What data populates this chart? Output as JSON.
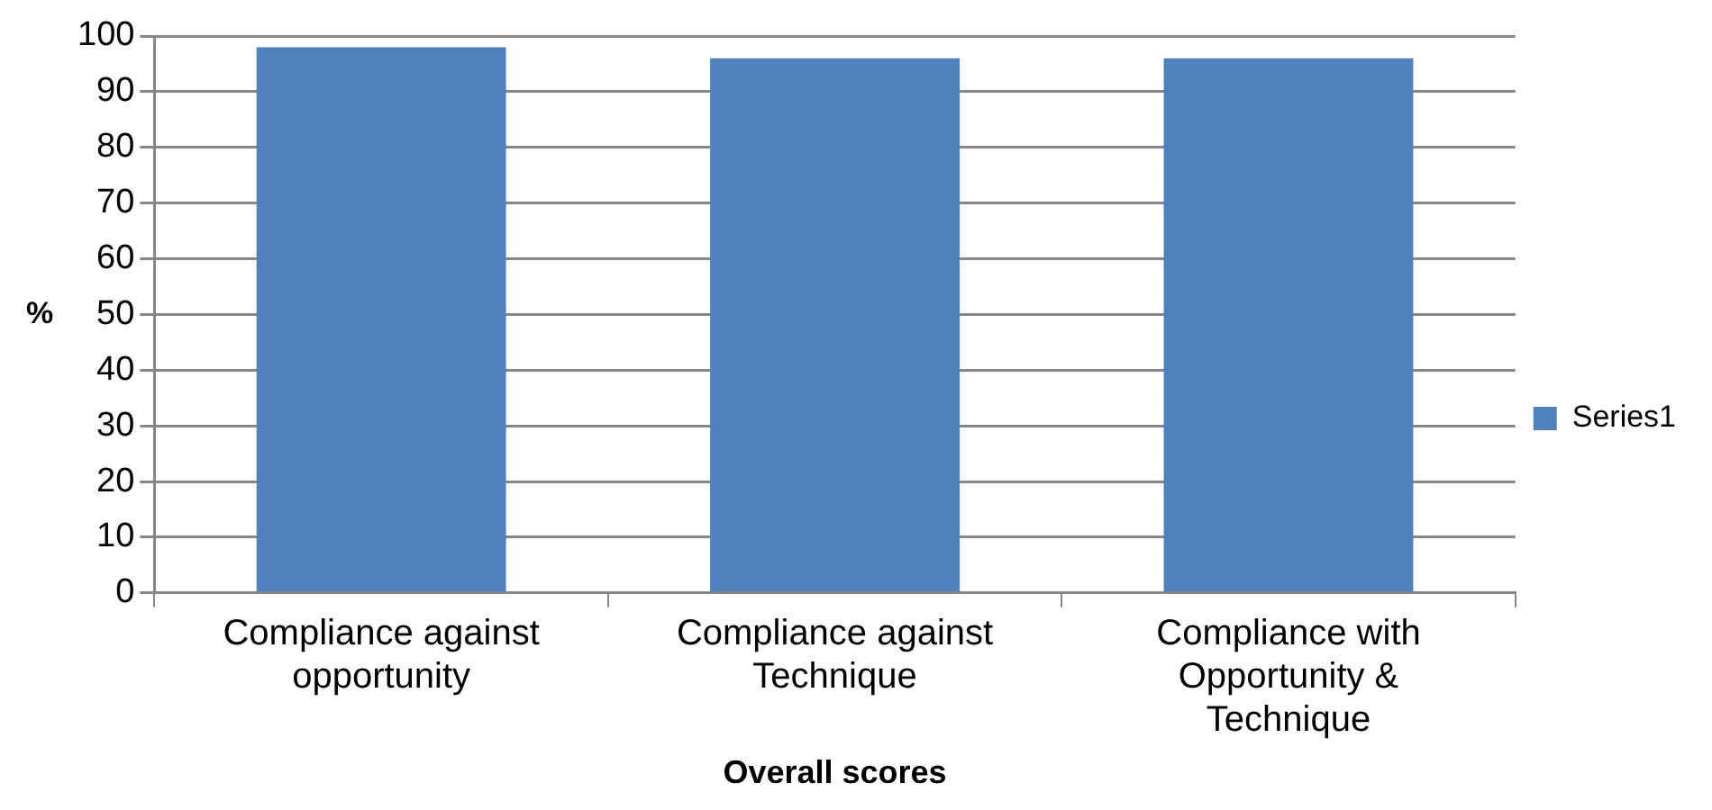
{
  "chart_data": {
    "type": "bar",
    "xlabel": "Overall scores",
    "ylabel": "%",
    "categories": [
      "Compliance against opportunity",
      "Compliance against Technique",
      "Compliance with Opportunity & Technique"
    ],
    "series": [
      {
        "name": "Series1",
        "color": "#4f81bd",
        "values": [
          98,
          96,
          96
        ]
      }
    ],
    "ylim": [
      0,
      100
    ],
    "yticks": [
      0,
      10,
      20,
      30,
      40,
      50,
      60,
      70,
      80,
      90,
      100
    ],
    "grid": "y",
    "legend": "right"
  }
}
